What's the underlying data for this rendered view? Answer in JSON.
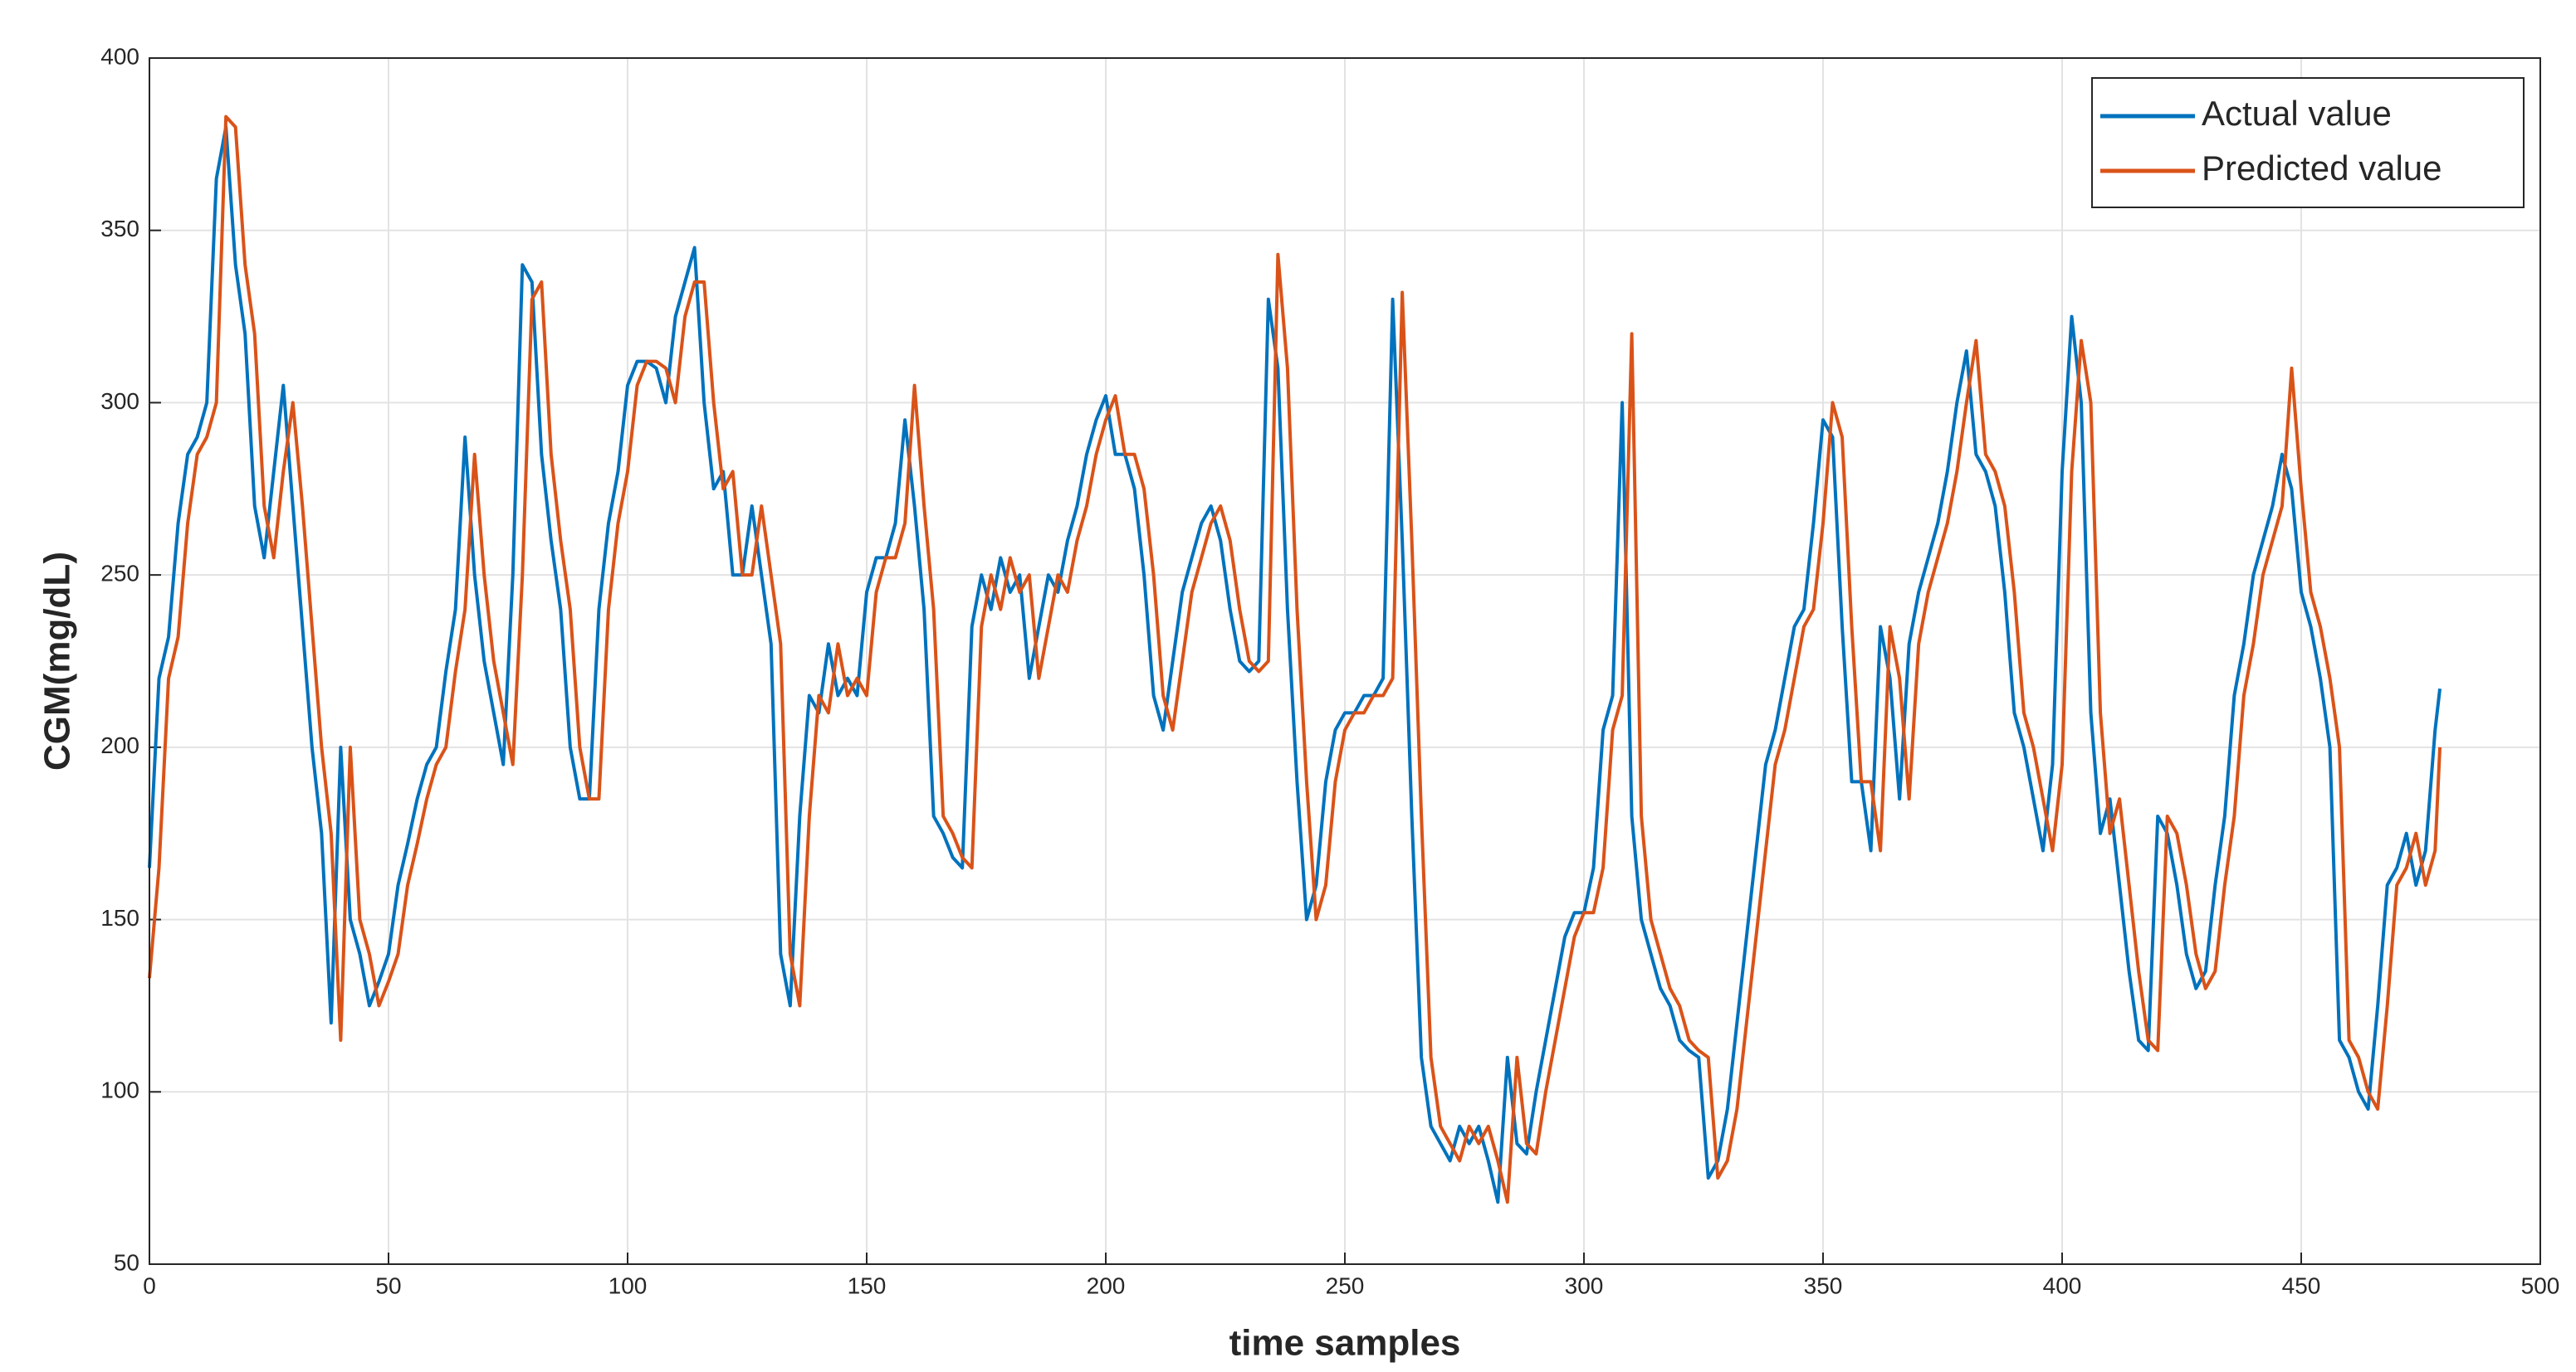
{
  "chart_data": {
    "type": "line",
    "xlabel": "time samples",
    "ylabel": "CGM(mg/dL)",
    "xlim": [
      0,
      500
    ],
    "ylim": [
      50,
      400
    ],
    "xticks": [
      0,
      50,
      100,
      150,
      200,
      250,
      300,
      350,
      400,
      450,
      500
    ],
    "yticks": [
      50,
      100,
      150,
      200,
      250,
      300,
      350,
      400
    ],
    "grid": true,
    "legend": "upper right",
    "x": [
      0,
      2,
      4,
      6,
      8,
      10,
      12,
      14,
      16,
      18,
      20,
      22,
      24,
      26,
      28,
      30,
      32,
      34,
      36,
      38,
      40,
      42,
      44,
      46,
      48,
      50,
      52,
      54,
      56,
      58,
      60,
      62,
      64,
      66,
      68,
      70,
      72,
      74,
      76,
      78,
      80,
      82,
      84,
      86,
      88,
      90,
      92,
      94,
      96,
      98,
      100,
      102,
      104,
      106,
      108,
      110,
      112,
      114,
      116,
      118,
      120,
      122,
      124,
      126,
      128,
      130,
      132,
      134,
      136,
      138,
      140,
      142,
      144,
      146,
      148,
      150,
      152,
      154,
      156,
      158,
      160,
      162,
      164,
      166,
      168,
      170,
      172,
      174,
      176,
      178,
      180,
      182,
      184,
      186,
      188,
      190,
      192,
      194,
      196,
      198,
      200,
      202,
      204,
      206,
      208,
      210,
      212,
      214,
      216,
      218,
      220,
      222,
      224,
      226,
      228,
      230,
      232,
      234,
      236,
      238,
      240,
      242,
      244,
      246,
      248,
      250,
      252,
      254,
      256,
      258,
      260,
      262,
      264,
      266,
      268,
      270,
      272,
      274,
      276,
      278,
      280,
      282,
      284,
      286,
      288,
      290,
      292,
      294,
      296,
      298,
      300,
      302,
      304,
      306,
      308,
      310,
      312,
      314,
      316,
      318,
      320,
      322,
      324,
      326,
      328,
      330,
      332,
      334,
      336,
      338,
      340,
      342,
      344,
      346,
      348,
      350,
      352,
      354,
      356,
      358,
      360,
      362,
      364,
      366,
      368,
      370,
      372,
      374,
      376,
      378,
      380,
      382,
      384,
      386,
      388,
      390,
      392,
      394,
      396,
      398,
      400,
      402,
      404,
      406,
      408,
      410,
      412,
      414,
      416,
      418,
      420,
      422,
      424,
      426,
      428,
      430,
      432,
      434,
      436,
      438,
      440,
      442,
      444,
      446,
      448,
      450,
      452,
      454,
      456,
      458,
      460,
      462,
      464,
      466,
      468,
      470,
      472,
      474,
      476,
      478,
      479
    ],
    "series": [
      {
        "name": "Actual value",
        "color": "#0072BD",
        "values": [
          165,
          220,
          232,
          265,
          285,
          290,
          300,
          365,
          380,
          340,
          320,
          270,
          255,
          280,
          305,
          270,
          235,
          200,
          175,
          120,
          200,
          150,
          140,
          125,
          132,
          140,
          160,
          172,
          185,
          195,
          200,
          222,
          240,
          290,
          250,
          225,
          210,
          195,
          250,
          340,
          335,
          285,
          260,
          240,
          200,
          185,
          185,
          240,
          265,
          280,
          305,
          312,
          312,
          310,
          300,
          325,
          335,
          345,
          300,
          275,
          280,
          250,
          250,
          270,
          250,
          230,
          140,
          125,
          180,
          215,
          210,
          230,
          215,
          220,
          215,
          245,
          255,
          255,
          265,
          295,
          270,
          240,
          180,
          175,
          168,
          165,
          235,
          250,
          240,
          255,
          245,
          250,
          220,
          235,
          250,
          245,
          260,
          270,
          285,
          295,
          302,
          285,
          285,
          275,
          250,
          215,
          205,
          225,
          245,
          255,
          265,
          270,
          260,
          240,
          225,
          222,
          225,
          330,
          310,
          240,
          190,
          150,
          160,
          190,
          205,
          210,
          210,
          215,
          215,
          220,
          330,
          260,
          180,
          110,
          90,
          85,
          80,
          90,
          85,
          90,
          80,
          68,
          110,
          85,
          82,
          100,
          115,
          130,
          145,
          152,
          152,
          165,
          205,
          215,
          300,
          180,
          150,
          140,
          130,
          125,
          115,
          112,
          110,
          75,
          80,
          95,
          120,
          145,
          170,
          195,
          205,
          220,
          235,
          240,
          265,
          295,
          290,
          235,
          190,
          190,
          170,
          235,
          220,
          185,
          230,
          245,
          255,
          265,
          280,
          300,
          315,
          285,
          280,
          270,
          245,
          210,
          200,
          185,
          170,
          195,
          280,
          325,
          300,
          210,
          175,
          185,
          160,
          135,
          115,
          112,
          180,
          175,
          160,
          140,
          130,
          135,
          160,
          180,
          215,
          230,
          250,
          260,
          270,
          285,
          275,
          245,
          235,
          220,
          200,
          115,
          110,
          100,
          95,
          125,
          160,
          165,
          175,
          160,
          170,
          205,
          217
        ]
      },
      {
        "name": "Predicted value",
        "color": "#D95319",
        "values": [
          133,
          165,
          220,
          232,
          265,
          285,
          290,
          300,
          383,
          380,
          340,
          320,
          270,
          255,
          280,
          300,
          270,
          235,
          200,
          175,
          115,
          200,
          150,
          140,
          125,
          132,
          140,
          160,
          172,
          185,
          195,
          200,
          222,
          240,
          285,
          250,
          225,
          210,
          195,
          250,
          330,
          335,
          285,
          260,
          240,
          200,
          185,
          185,
          240,
          265,
          280,
          305,
          312,
          312,
          310,
          300,
          325,
          335,
          335,
          300,
          275,
          280,
          250,
          250,
          270,
          250,
          230,
          140,
          125,
          180,
          215,
          210,
          230,
          215,
          220,
          215,
          245,
          255,
          255,
          265,
          305,
          270,
          240,
          180,
          175,
          168,
          165,
          235,
          250,
          240,
          255,
          245,
          250,
          220,
          235,
          250,
          245,
          260,
          270,
          285,
          295,
          302,
          285,
          285,
          275,
          250,
          215,
          205,
          225,
          245,
          255,
          265,
          270,
          260,
          240,
          225,
          222,
          225,
          343,
          310,
          240,
          190,
          150,
          160,
          190,
          205,
          210,
          210,
          215,
          215,
          220,
          332,
          260,
          180,
          110,
          90,
          85,
          80,
          90,
          85,
          90,
          80,
          68,
          110,
          85,
          82,
          100,
          115,
          130,
          145,
          152,
          152,
          165,
          205,
          215,
          320,
          180,
          150,
          140,
          130,
          125,
          115,
          112,
          110,
          75,
          80,
          95,
          120,
          145,
          170,
          195,
          205,
          220,
          235,
          240,
          265,
          300,
          290,
          235,
          190,
          190,
          170,
          235,
          220,
          185,
          230,
          245,
          255,
          265,
          280,
          300,
          318,
          285,
          280,
          270,
          245,
          210,
          200,
          185,
          170,
          195,
          280,
          318,
          300,
          210,
          175,
          185,
          160,
          135,
          115,
          112,
          180,
          175,
          160,
          140,
          130,
          135,
          160,
          180,
          215,
          230,
          250,
          260,
          270,
          310,
          275,
          245,
          235,
          220,
          200,
          115,
          110,
          100,
          95,
          125,
          160,
          165,
          175,
          160,
          170,
          200
        ]
      }
    ]
  }
}
